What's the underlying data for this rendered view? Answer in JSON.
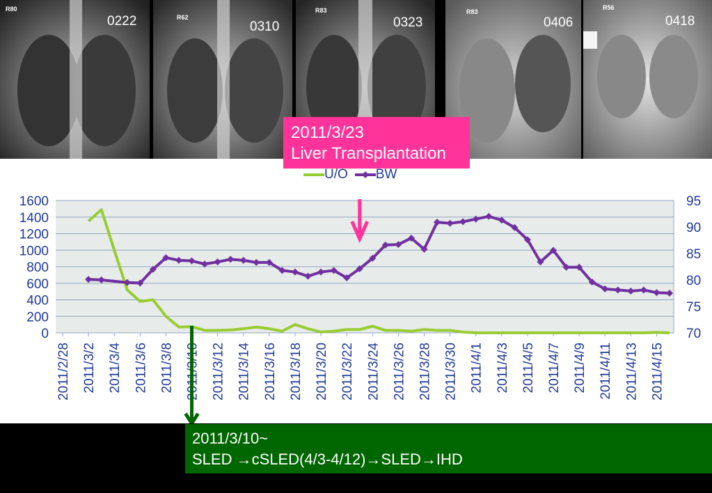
{
  "xrays": [
    {
      "label": "0222",
      "marker": "R80"
    },
    {
      "label": "0310",
      "marker": "R62"
    },
    {
      "label": "0323",
      "marker": "R83"
    },
    {
      "label": "0406",
      "marker": "R83"
    },
    {
      "label": "0418",
      "marker": "R56"
    }
  ],
  "annotations": {
    "transplant_date": "2011/3/23",
    "transplant_text": "Liver Transplantation",
    "sled_date": "2011/3/10~",
    "sled_text": "SLED →cSLED(4/3-4/12)→SLED→IHD"
  },
  "colors": {
    "uo": "#99cc33",
    "bw": "#7030a0",
    "pink": "#ff3399",
    "green": "#006600",
    "axis_text": "#1f3a93",
    "plot_bg": "#e7ebe9",
    "grid": "#8fa7c2"
  },
  "chart_data": {
    "type": "line",
    "legend": [
      "U/O",
      "BW"
    ],
    "legend_position": "top",
    "grid": true,
    "y_left_ticks": [
      "0",
      "200",
      "400",
      "600",
      "800",
      "1000",
      "1200",
      "1400",
      "1600"
    ],
    "y_right_ticks": [
      "70",
      "75",
      "80",
      "85",
      "90",
      "95"
    ],
    "ylim_left": [
      0,
      1600
    ],
    "ylim_right": [
      70,
      95
    ],
    "x_tick_labels": [
      "2011/2/28",
      "2011/3/2",
      "2011/3/4",
      "2011/3/6",
      "2011/3/8",
      "2011/3/10",
      "2011/3/12",
      "2011/3/14",
      "2011/3/16",
      "2011/3/18",
      "2011/3/20",
      "2011/3/22",
      "2011/3/24",
      "2011/3/26",
      "2011/3/28",
      "2011/3/30",
      "2011/4/1",
      "2011/4/3",
      "2011/4/5",
      "2011/4/7",
      "2011/4/9",
      "2011/4/11",
      "2011/4/13",
      "2011/4/15"
    ],
    "x_days": [
      0,
      47
    ],
    "series": [
      {
        "name": "U/O",
        "axis": "left",
        "x": [
          2,
          3,
          4,
          5,
          6,
          7,
          8,
          9,
          10,
          11,
          12,
          13,
          14,
          15,
          16,
          17,
          18,
          19,
          20,
          21,
          22,
          23,
          24,
          25,
          26,
          27,
          28,
          29,
          30,
          31,
          32,
          33,
          34,
          35,
          36,
          37,
          38,
          39,
          40,
          41,
          42,
          43,
          44,
          45,
          46,
          47
        ],
        "values": [
          1350,
          1490,
          1000,
          520,
          380,
          400,
          200,
          70,
          75,
          30,
          30,
          35,
          50,
          70,
          50,
          20,
          100,
          50,
          10,
          20,
          40,
          40,
          80,
          30,
          30,
          20,
          40,
          30,
          30,
          10,
          0,
          0,
          0,
          0,
          0,
          0,
          0,
          0,
          0,
          0,
          0,
          0,
          0,
          0,
          5,
          0
        ]
      },
      {
        "name": "BW",
        "axis": "right",
        "x": [
          2,
          3,
          5,
          6,
          7,
          8,
          9,
          10,
          11,
          12,
          13,
          14,
          15,
          16,
          17,
          18,
          19,
          20,
          21,
          22,
          23,
          24,
          25,
          26,
          27,
          28,
          29,
          30,
          31,
          32,
          33,
          34,
          35,
          36,
          37,
          38,
          39,
          40,
          41,
          42,
          43,
          44,
          45,
          46,
          47
        ],
        "values": [
          80.1,
          80.0,
          79.5,
          79.4,
          82.0,
          84.2,
          83.7,
          83.6,
          83.0,
          83.4,
          83.9,
          83.7,
          83.3,
          83.3,
          81.8,
          81.5,
          80.7,
          81.5,
          81.8,
          80.4,
          82.1,
          84.1,
          86.6,
          86.7,
          87.9,
          85.8,
          90.9,
          90.7,
          91.0,
          91.5,
          92.0,
          91.3,
          89.9,
          87.6,
          83.4,
          85.6,
          82.4,
          82.4,
          79.6,
          78.3,
          78.1,
          77.9,
          78.1,
          77.6,
          77.5
        ]
      }
    ]
  }
}
